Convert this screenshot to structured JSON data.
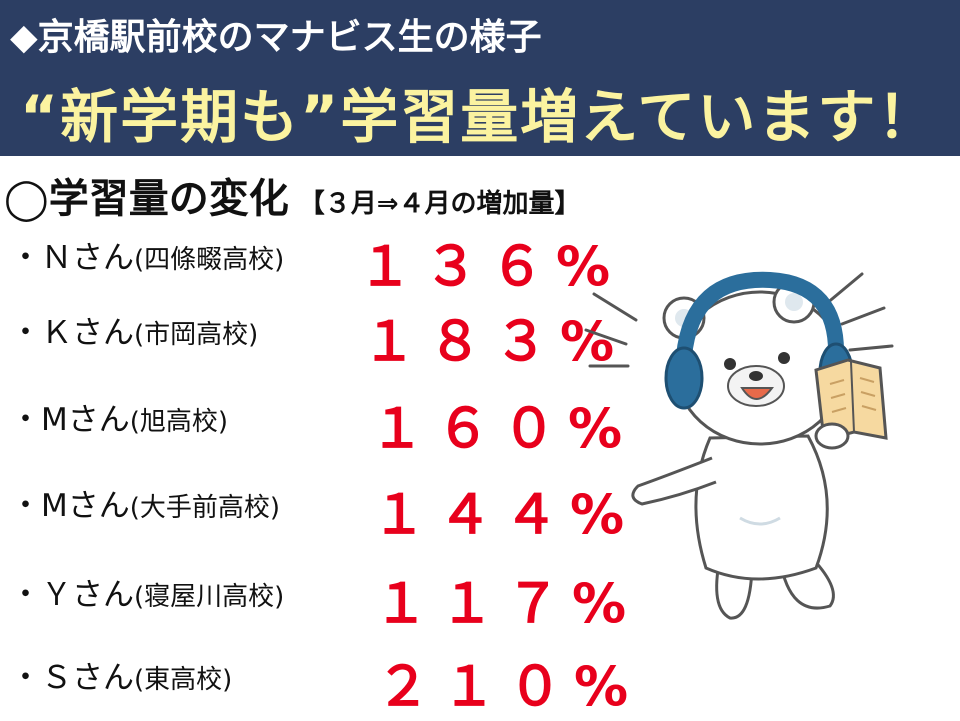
{
  "header": {
    "subtitle": "◆京橋駅前校のマナビス生の様子",
    "headline": "“新学期も”学習量増えています！"
  },
  "section": {
    "title": "◯学習量の変化",
    "note": "【３月⇒４月の増加量】"
  },
  "students": [
    {
      "name": "・Ｎさん",
      "school": "(四條畷高校)",
      "percent": "１３６%"
    },
    {
      "name": "・Ｋさん",
      "school": "(市岡高校)",
      "percent": "１８３%"
    },
    {
      "name": "・Mさん",
      "school": "(旭高校)",
      "percent": "１６０%"
    },
    {
      "name": "・Mさん",
      "school": "(大手前高校)",
      "percent": "１４４%"
    },
    {
      "name": "・Ｙさん",
      "school": "(寝屋川高校)",
      "percent": "１１７%"
    },
    {
      "name": "・Ｓさん",
      "school": "(東高校)",
      "percent": "２１０%"
    }
  ],
  "colors": {
    "header_bg": "#2c3e63",
    "headline": "#fbf3a0",
    "percent": "#e8001c",
    "headphones": "#2b6e9c",
    "book": "#f6d9a0"
  },
  "illustration": {
    "icon": "bear-with-headphones-reading-book-icon"
  }
}
